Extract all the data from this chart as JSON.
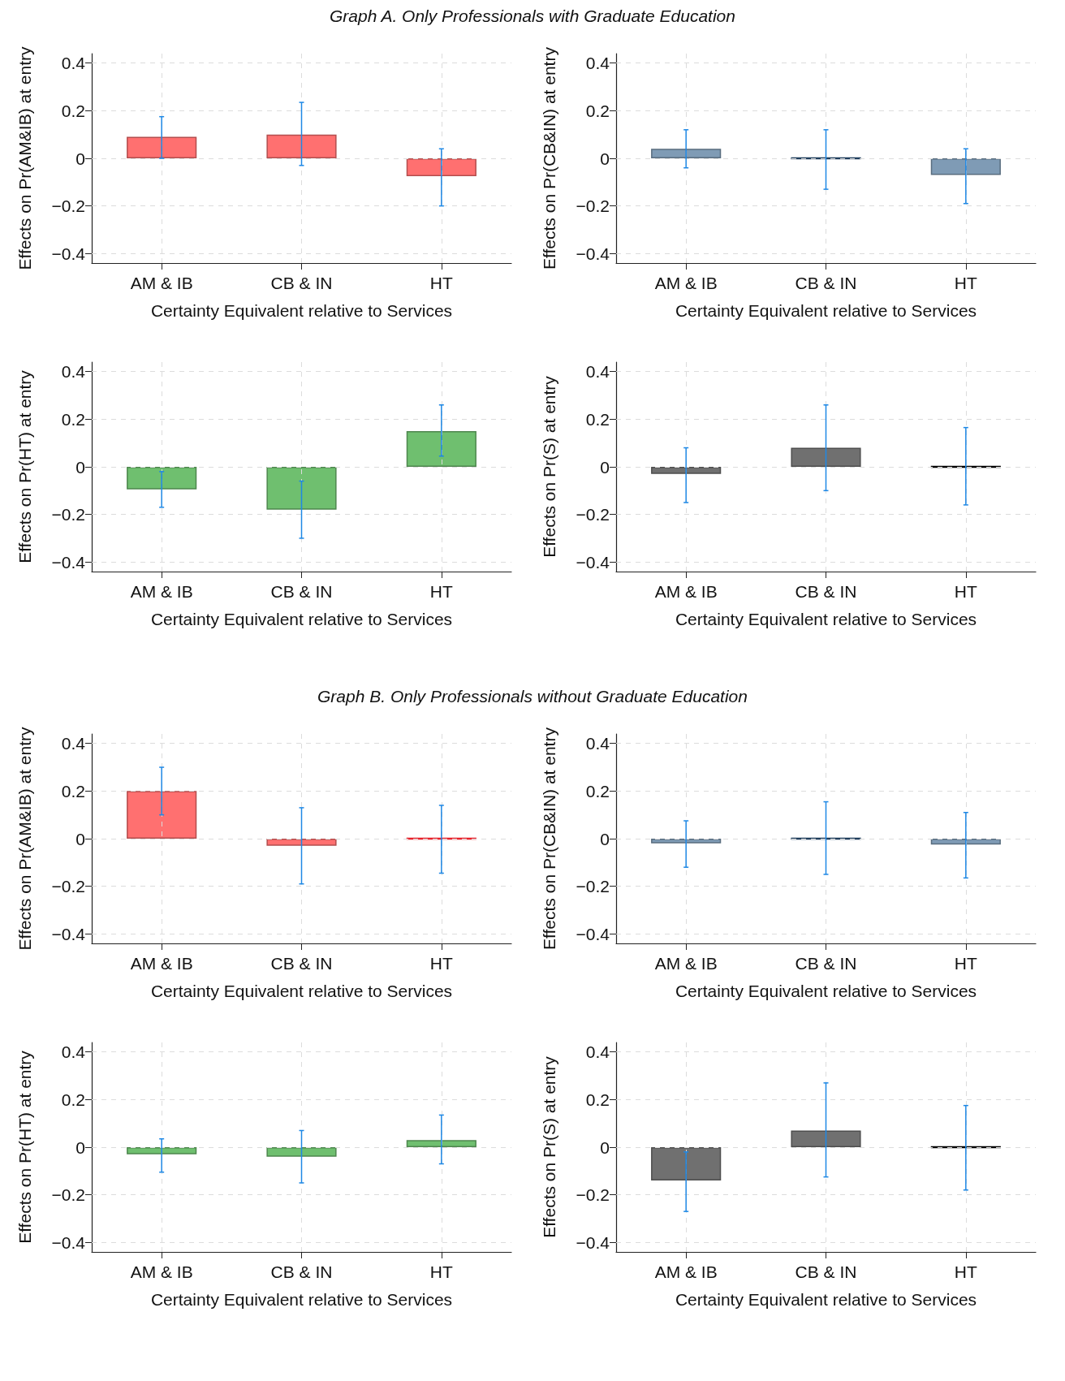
{
  "chart_data": [
    {
      "type": "bar",
      "title": "Graph A. Only Professionals with Graduate Education",
      "xlabel": "Certainty Equivalent relative to Services",
      "ylabel": "Effects on Pr(AM&IB) at entry",
      "categories": [
        "AM & IB",
        "CB & IN",
        "HT"
      ],
      "values": [
        0.09,
        0.1,
        -0.075
      ],
      "errors": [
        [
          0.0,
          0.175
        ],
        [
          -0.03,
          0.235
        ],
        [
          -0.2,
          0.04
        ]
      ],
      "color": "#ff7070",
      "ylim": [
        -0.44,
        0.44
      ],
      "yticks": [
        -0.4,
        -0.2,
        0,
        0.2,
        0.4
      ],
      "grid": true
    },
    {
      "type": "bar",
      "xlabel": "Certainty Equivalent relative to Services",
      "ylabel": "Effects on Pr(CB&IN) at entry",
      "categories": [
        "AM & IB",
        "CB & IN",
        "HT"
      ],
      "values": [
        0.04,
        0.0,
        -0.07
      ],
      "errors": [
        [
          -0.04,
          0.12
        ],
        [
          -0.13,
          0.12
        ],
        [
          -0.19,
          0.04
        ]
      ],
      "colors": [
        "#7f9bb5",
        "#1f3d5c",
        "#7f9bb5"
      ],
      "ylim": [
        -0.44,
        0.44
      ],
      "yticks": [
        -0.4,
        -0.2,
        0,
        0.2,
        0.4
      ],
      "grid": true
    },
    {
      "type": "bar",
      "xlabel": "Certainty Equivalent relative to Services",
      "ylabel": "Effects on Pr(HT) at entry",
      "categories": [
        "AM & IB",
        "CB & IN",
        "HT"
      ],
      "values": [
        -0.095,
        -0.18,
        0.15
      ],
      "errors": [
        [
          -0.17,
          -0.02
        ],
        [
          -0.3,
          -0.06
        ],
        [
          0.045,
          0.26
        ]
      ],
      "color": "#6fbf6f",
      "ylim": [
        -0.44,
        0.44
      ],
      "yticks": [
        -0.4,
        -0.2,
        0,
        0.2,
        0.4
      ],
      "grid": true
    },
    {
      "type": "bar",
      "xlabel": "Certainty Equivalent relative to Services",
      "ylabel": "Effects on Pr(S) at entry",
      "categories": [
        "AM & IB",
        "CB & IN",
        "HT"
      ],
      "values": [
        -0.03,
        0.08,
        0.0
      ],
      "errors": [
        [
          -0.15,
          0.08
        ],
        [
          -0.1,
          0.26
        ],
        [
          -0.16,
          0.165
        ]
      ],
      "colors": [
        "#707070",
        "#707070",
        "#000000"
      ],
      "ylim": [
        -0.44,
        0.44
      ],
      "yticks": [
        -0.4,
        -0.2,
        0,
        0.2,
        0.4
      ],
      "grid": true
    },
    {
      "type": "bar",
      "title": "Graph B. Only Professionals without Graduate Education",
      "xlabel": "Certainty Equivalent relative to Services",
      "ylabel": "Effects on Pr(AM&IB) at entry",
      "categories": [
        "AM & IB",
        "CB & IN",
        "HT"
      ],
      "values": [
        0.2,
        -0.03,
        0.0
      ],
      "errors": [
        [
          0.1,
          0.3
        ],
        [
          -0.19,
          0.13
        ],
        [
          -0.145,
          0.14
        ]
      ],
      "colors": [
        "#ff7070",
        "#ff7070",
        "#e8202a"
      ],
      "ylim": [
        -0.44,
        0.44
      ],
      "yticks": [
        -0.4,
        -0.2,
        0,
        0.2,
        0.4
      ],
      "grid": true
    },
    {
      "type": "bar",
      "xlabel": "Certainty Equivalent relative to Services",
      "ylabel": "Effects on Pr(CB&IN) at entry",
      "categories": [
        "AM & IB",
        "CB & IN",
        "HT"
      ],
      "values": [
        -0.02,
        0.0,
        -0.025
      ],
      "errors": [
        [
          -0.12,
          0.075
        ],
        [
          -0.15,
          0.155
        ],
        [
          -0.165,
          0.11
        ]
      ],
      "colors": [
        "#7f9bb5",
        "#1f3d5c",
        "#7f9bb5"
      ],
      "ylim": [
        -0.44,
        0.44
      ],
      "yticks": [
        -0.4,
        -0.2,
        0,
        0.2,
        0.4
      ],
      "grid": true
    },
    {
      "type": "bar",
      "xlabel": "Certainty Equivalent relative to Services",
      "ylabel": "Effects on Pr(HT) at entry",
      "categories": [
        "AM & IB",
        "CB & IN",
        "HT"
      ],
      "values": [
        -0.03,
        -0.04,
        0.03
      ],
      "errors": [
        [
          -0.105,
          0.035
        ],
        [
          -0.15,
          0.07
        ],
        [
          -0.07,
          0.135
        ]
      ],
      "color": "#6fbf6f",
      "ylim": [
        -0.44,
        0.44
      ],
      "yticks": [
        -0.4,
        -0.2,
        0,
        0.2,
        0.4
      ],
      "grid": true
    },
    {
      "type": "bar",
      "xlabel": "Certainty Equivalent relative to Services",
      "ylabel": "Effects on Pr(S) at entry",
      "categories": [
        "AM & IB",
        "CB & IN",
        "HT"
      ],
      "values": [
        -0.14,
        0.07,
        0.0
      ],
      "errors": [
        [
          -0.27,
          -0.02
        ],
        [
          -0.125,
          0.27
        ],
        [
          -0.18,
          0.175
        ]
      ],
      "colors": [
        "#707070",
        "#707070",
        "#000000"
      ],
      "ylim": [
        -0.44,
        0.44
      ],
      "yticks": [
        -0.4,
        -0.2,
        0,
        0.2,
        0.4
      ],
      "grid": true
    }
  ]
}
